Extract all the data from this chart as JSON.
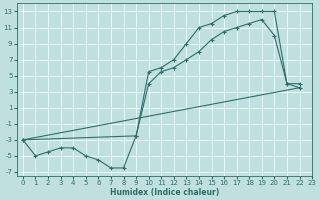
{
  "xlabel": "Humidex (Indice chaleur)",
  "ylabel": "",
  "background_color": "#c0e0e0",
  "grid_color": "#e8f8f8",
  "line_color": "#2e6e68",
  "xlim": [
    -0.5,
    23
  ],
  "ylim": [
    -7.5,
    14
  ],
  "xticks": [
    0,
    1,
    2,
    3,
    4,
    5,
    6,
    7,
    8,
    9,
    10,
    11,
    12,
    13,
    14,
    15,
    16,
    17,
    18,
    19,
    20,
    21,
    22,
    23
  ],
  "yticks": [
    -7,
    -5,
    -3,
    -1,
    1,
    3,
    5,
    7,
    9,
    11,
    13
  ],
  "line1_x": [
    0,
    1,
    2,
    3,
    4,
    5,
    6,
    7,
    8,
    9,
    10,
    11,
    12,
    13,
    14,
    15,
    16,
    17,
    18,
    19,
    20,
    21,
    22
  ],
  "line1_y": [
    -3,
    -5,
    -4.5,
    -4,
    -4,
    -5,
    -5.5,
    -6.5,
    -6.5,
    -2.5,
    5.5,
    6,
    7,
    9,
    11,
    11.5,
    12.5,
    13,
    13,
    13,
    13,
    4,
    4
  ],
  "line2_x": [
    0,
    9,
    10,
    11,
    12,
    13,
    14,
    15,
    16,
    17,
    18,
    19,
    20,
    21,
    22
  ],
  "line2_y": [
    -3,
    -2.5,
    4,
    5.5,
    6,
    7,
    8,
    9.5,
    10.5,
    11,
    11.5,
    12,
    10,
    4,
    3.5
  ],
  "line3_x": [
    0,
    22
  ],
  "line3_y": [
    -3,
    3.5
  ]
}
